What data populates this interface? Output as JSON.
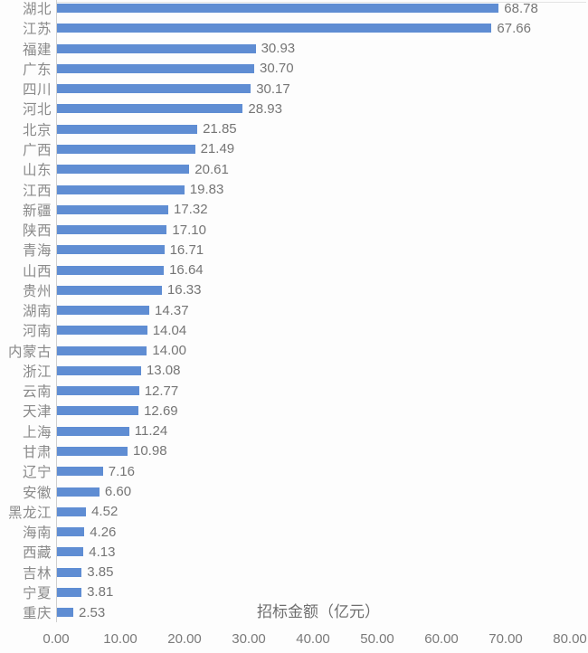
{
  "chart_data": {
    "type": "bar",
    "orientation": "horizontal",
    "title": "",
    "xlabel": "招标金额（亿元）",
    "ylabel": "",
    "xlim": [
      0,
      80
    ],
    "grid": false,
    "legend": null,
    "x_ticks": [
      0,
      10,
      20,
      30,
      40,
      50,
      60,
      70,
      80
    ],
    "x_tick_labels": [
      "0.00",
      "10.00",
      "20.00",
      "30.00",
      "40.00",
      "50.00",
      "60.00",
      "70.00",
      "80.00"
    ],
    "categories": [
      "湖北",
      "江苏",
      "福建",
      "广东",
      "四川",
      "河北",
      "北京",
      "广西",
      "山东",
      "江西",
      "新疆",
      "陕西",
      "青海",
      "山西",
      "贵州",
      "湖南",
      "河南",
      "内蒙古",
      "浙江",
      "云南",
      "天津",
      "上海",
      "甘肃",
      "辽宁",
      "安徽",
      "黑龙江",
      "海南",
      "西藏",
      "吉林",
      "宁夏",
      "重庆"
    ],
    "values": [
      68.78,
      67.66,
      30.93,
      30.7,
      30.17,
      28.93,
      21.85,
      21.49,
      20.61,
      19.83,
      17.32,
      17.1,
      16.71,
      16.64,
      16.33,
      14.37,
      14.04,
      14.0,
      13.08,
      12.77,
      12.69,
      11.24,
      10.98,
      7.16,
      6.6,
      4.52,
      4.26,
      4.13,
      3.85,
      3.81,
      2.53
    ],
    "bar_color": "#5f8dd3",
    "label_color": "#8a8a8a",
    "value_color": "#757575",
    "axis_line_color": "#cfcfcf"
  }
}
